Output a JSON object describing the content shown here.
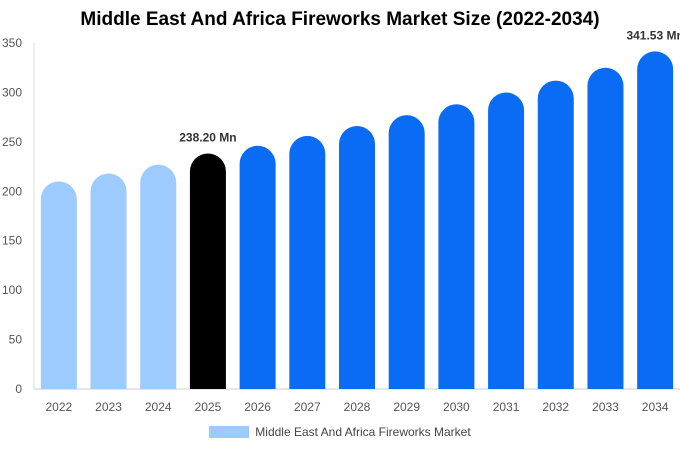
{
  "chart_data": {
    "type": "bar",
    "title": "Middle East And Africa Fireworks Market Size (2022-2034)",
    "categories": [
      "2022",
      "2023",
      "2024",
      "2025",
      "2026",
      "2027",
      "2028",
      "2029",
      "2030",
      "2031",
      "2032",
      "2033",
      "2034"
    ],
    "series": [
      {
        "name": "Middle East And Africa Fireworks Market",
        "values": [
          210,
          218,
          227,
          238.2,
          246,
          256,
          266,
          277,
          288,
          300,
          312,
          325,
          341.53
        ]
      }
    ],
    "data_labels": [
      {
        "category": "2025",
        "text": "238.20 Mn"
      },
      {
        "category": "2034",
        "text": "341.53 Mn"
      }
    ],
    "ylim": [
      0,
      350
    ],
    "yticks": [
      0,
      50,
      100,
      150,
      200,
      250,
      300,
      350
    ],
    "xlabel": "",
    "ylabel": "",
    "grid": false,
    "legend_position": "bottom",
    "colors": {
      "historical": "#9ecbff",
      "current": "#000000",
      "forecast": "#0a6cf5",
      "legend": "#9ecbff"
    },
    "historical_count": 3,
    "current_index": 3
  }
}
